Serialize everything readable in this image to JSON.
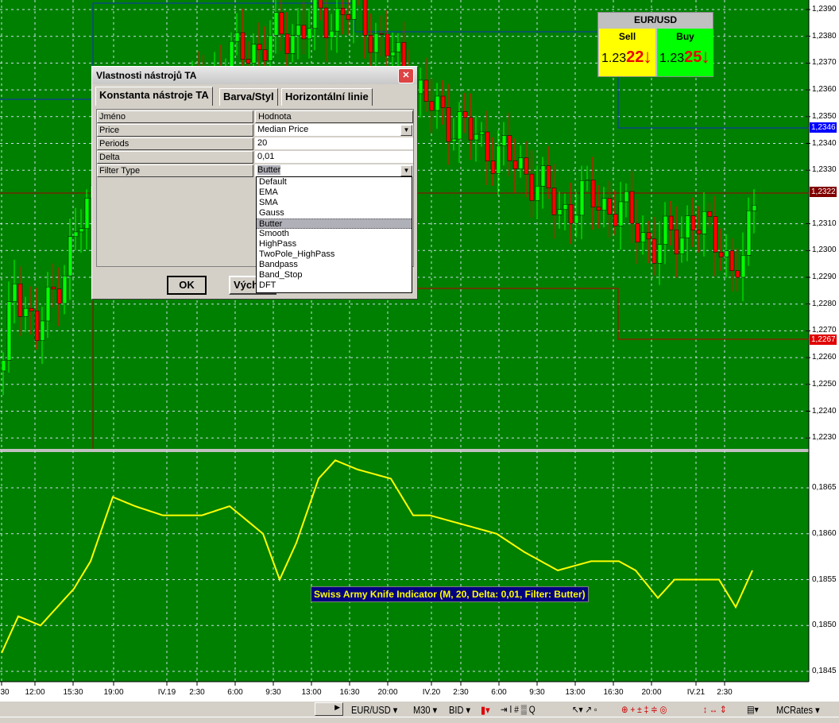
{
  "colors": {
    "background": "#008000",
    "bull": "#00ff00",
    "bear": "#ff0000",
    "indicator": "#ffff00",
    "grid": "#c8e6c8"
  },
  "price_axis": {
    "labels": [
      "1,2390",
      "1,2380",
      "1,2370",
      "1,2360",
      "1,2350",
      "1,2340",
      "1,2330",
      "1,2310",
      "1,2300",
      "1,2290",
      "1,2280",
      "1,2270",
      "1,2260",
      "1,2250",
      "1,2240",
      "1,2230"
    ],
    "tags": [
      {
        "text": "1,2346",
        "color": "#0000ff"
      },
      {
        "text": "1,2322",
        "color": "#800000"
      },
      {
        "text": "1,2267",
        "color": "#e00000"
      }
    ]
  },
  "indicator_axis": {
    "labels": [
      "0,1865",
      "0,1860",
      "0,1855",
      "0,1850",
      "0,1845"
    ]
  },
  "time_axis": {
    "labels": [
      "30",
      "12:00",
      "15:30",
      "19:00",
      "IV.19",
      "2:30",
      "6:00",
      "9:30",
      "13:00",
      "16:30",
      "20:00",
      "IV.20",
      "2:30",
      "6:00",
      "9:30",
      "13:00",
      "16:30",
      "20:00",
      "IV.21",
      "2:30"
    ]
  },
  "price_path": [
    [
      0,
      1.2255
    ],
    [
      2,
      1.229
    ],
    [
      6,
      1.2268
    ],
    [
      11,
      1.2295
    ],
    [
      16,
      1.232
    ],
    [
      41,
      1.2372
    ],
    [
      56,
      1.2385
    ],
    [
      63,
      1.239
    ],
    [
      71,
      1.237
    ],
    [
      76,
      1.2355
    ],
    [
      83,
      1.2345
    ],
    [
      86,
      1.234
    ],
    [
      94,
      1.233
    ],
    [
      100,
      1.2315
    ],
    [
      106,
      1.232
    ],
    [
      114,
      1.231
    ],
    [
      117,
      1.23
    ],
    [
      123,
      1.231
    ],
    [
      129,
      1.2305
    ],
    [
      131,
      1.229
    ],
    [
      133,
      1.2295
    ],
    [
      135,
      1.232
    ]
  ],
  "indicator_path": [
    [
      0,
      0.1847
    ],
    [
      3,
      0.1851
    ],
    [
      7,
      0.185
    ],
    [
      10,
      0.1852
    ],
    [
      13,
      0.1854
    ],
    [
      16,
      0.1857
    ],
    [
      20,
      0.1864
    ],
    [
      24,
      0.1863
    ],
    [
      29,
      0.1862
    ],
    [
      36,
      0.1862
    ],
    [
      41,
      0.1863
    ],
    [
      47,
      0.186
    ],
    [
      50,
      0.1855
    ],
    [
      53,
      0.1859
    ],
    [
      57,
      0.1866
    ],
    [
      60,
      0.1868
    ],
    [
      64,
      0.1867
    ],
    [
      70,
      0.1866
    ],
    [
      74,
      0.1862
    ],
    [
      77,
      0.1862
    ],
    [
      83,
      0.1861
    ],
    [
      89,
      0.186
    ],
    [
      94,
      0.1858
    ],
    [
      100,
      0.1856
    ],
    [
      106,
      0.1857
    ],
    [
      111,
      0.1857
    ],
    [
      114,
      0.1856
    ],
    [
      118,
      0.1853
    ],
    [
      121,
      0.1855
    ],
    [
      126,
      0.1855
    ],
    [
      129,
      0.1855
    ],
    [
      132,
      0.1852
    ],
    [
      135,
      0.1856
    ]
  ],
  "indicator_label": "Swiss Army Knife Indicator (M, 20, Delta: 0,01, Filter: Butter)",
  "widget": {
    "symbol": "EUR/USD",
    "sell_label": "Sell",
    "buy_label": "Buy",
    "sell_prefix": "1.23",
    "sell_pips": "22",
    "buy_prefix": "1.23",
    "buy_pips": "25",
    "sell_bg": "#ffff00",
    "buy_bg": "#00ff00"
  },
  "dialog": {
    "title": "Vlastnosti nástrojů TA",
    "tabs": [
      "Konstanta nástroje TA",
      "Barva/Styl",
      "Horizontální linie"
    ],
    "header": {
      "name": "Jméno",
      "value": "Hodnota"
    },
    "rows": [
      {
        "name": "Price",
        "value": "Median Price"
      },
      {
        "name": "Periods",
        "value": "20"
      },
      {
        "name": "Delta",
        "value": "0,01"
      },
      {
        "name": "Filter Type",
        "value": "Butter"
      }
    ],
    "options": [
      "Default",
      "EMA",
      "SMA",
      "Gauss",
      "Butter",
      "Smooth",
      "HighPass",
      "TwoPole_HighPass",
      "Bandpass",
      "Band_Stop",
      "DFT"
    ],
    "selected_option": "Butter",
    "ok": "OK",
    "default": "Vých"
  },
  "toolbar": {
    "symbol": "EUR/USD ▾",
    "timeframe": "M30 ▾",
    "side": "BID ▾",
    "source": "MCRates ▾"
  }
}
